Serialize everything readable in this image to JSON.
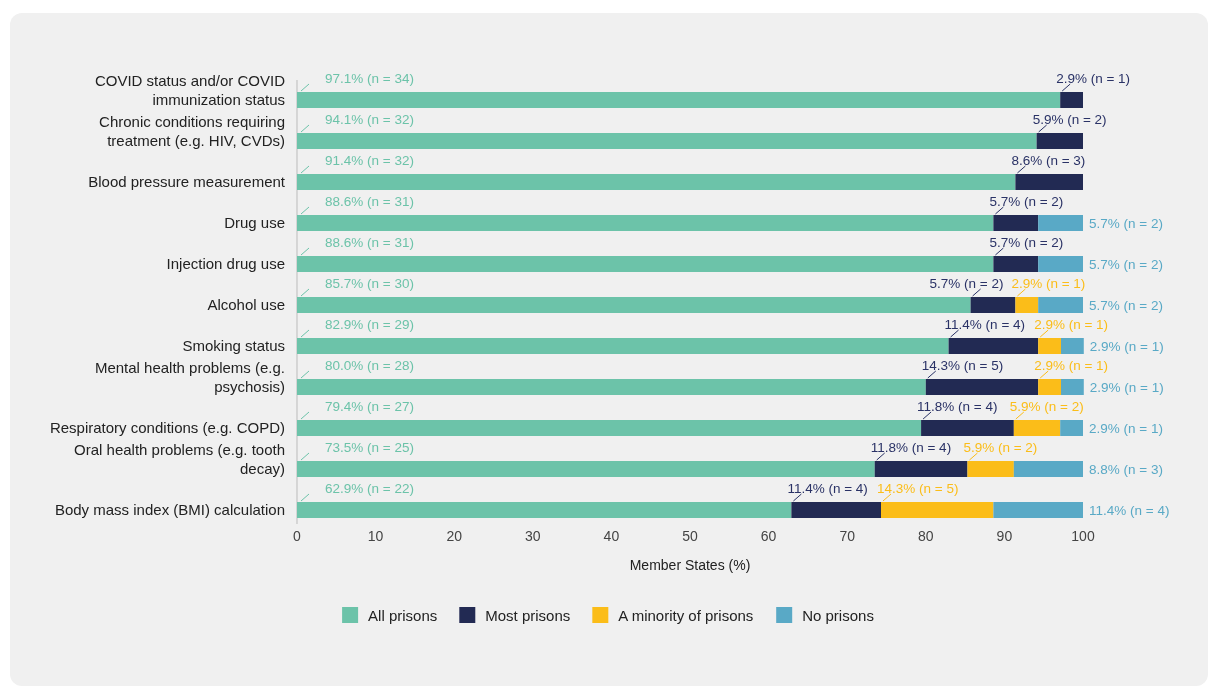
{
  "chart_data": {
    "type": "bar",
    "orientation": "horizontal",
    "stacked": true,
    "xlabel": "Member States (%)",
    "xlim": [
      0,
      100
    ],
    "xticks": [
      0,
      10,
      20,
      30,
      40,
      50,
      60,
      70,
      80,
      90,
      100
    ],
    "grid": false,
    "legend": "bottom",
    "categories": [
      "COVID status and/or COVID immunization status",
      "Chronic conditions requiring treatment (e.g. HIV, CVDs)",
      "Blood pressure measurement",
      "Drug use",
      "Injection drug use",
      "Alcohol use",
      "Smoking status",
      "Mental health problems (e.g. psychosis)",
      "Respiratory conditions (e.g. COPD)",
      "Oral health problems (e.g. tooth decay)",
      "Body mass index (BMI) calculation"
    ],
    "series": [
      {
        "name": "All prisons",
        "color": "#6cc3a9",
        "values": [
          97.1,
          94.1,
          91.4,
          88.6,
          88.6,
          85.7,
          82.9,
          80.0,
          79.4,
          73.5,
          62.9
        ],
        "value_labels": [
          "97.1% (n = 34)",
          "94.1% (n = 32)",
          "91.4% (n = 32)",
          "88.6% (n = 31)",
          "88.6% (n = 31)",
          "85.7% (n = 30)",
          "82.9% (n = 29)",
          "80.0% (n = 28)",
          "79.4% (n = 27)",
          "73.5% (n = 25)",
          "62.9% (n = 22)"
        ]
      },
      {
        "name": "Most prisons",
        "color": "#222a53",
        "values": [
          2.9,
          5.9,
          8.6,
          5.7,
          5.7,
          5.7,
          11.4,
          14.3,
          11.8,
          11.8,
          11.4
        ],
        "value_labels": [
          "2.9% (n = 1)",
          "5.9% (n = 2)",
          "8.6% (n = 3)",
          "5.7% (n = 2)",
          "5.7% (n = 2)",
          "5.7% (n = 2)",
          "11.4% (n = 4)",
          "14.3% (n = 5)",
          "11.8% (n = 4)",
          "11.8% (n = 4)",
          "11.4% (n = 4)"
        ]
      },
      {
        "name": "A minority of prisons",
        "color": "#fbbd19",
        "values": [
          0,
          0,
          0,
          0,
          0,
          2.9,
          2.9,
          2.9,
          5.9,
          5.9,
          14.3
        ],
        "value_labels": [
          null,
          null,
          null,
          null,
          null,
          "2.9% (n = 1)",
          "2.9% (n = 1)",
          "2.9% (n = 1)",
          "5.9% (n = 2)",
          "5.9% (n = 2)",
          "14.3% (n = 5)"
        ]
      },
      {
        "name": "No prisons",
        "color": "#59a9c6",
        "values": [
          0,
          0,
          0,
          5.7,
          5.7,
          5.7,
          2.9,
          2.9,
          2.9,
          8.8,
          11.4
        ],
        "value_labels": [
          null,
          null,
          null,
          "5.7% (n = 2)",
          "5.7% (n = 2)",
          "5.7% (n = 2)",
          "2.9% (n = 1)",
          "2.9% (n = 1)",
          "2.9% (n = 1)",
          "8.8% (n = 3)",
          "11.4% (n = 4)"
        ]
      }
    ]
  }
}
